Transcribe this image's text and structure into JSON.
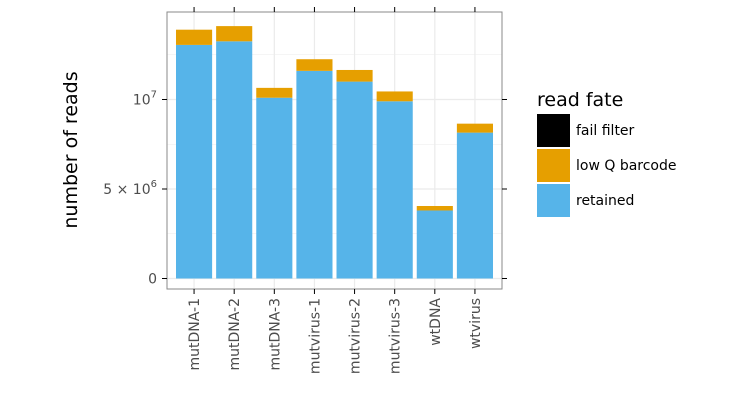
{
  "chart_data": {
    "type": "bar",
    "stacked": true,
    "title": "",
    "xlabel": "",
    "ylabel": "number of reads",
    "ylim": [
      0,
      14600000
    ],
    "yticks": [
      {
        "value": 0,
        "label": "0"
      },
      {
        "value": 5000000,
        "label": "5 × 10",
        "exp": "6"
      },
      {
        "value": 10000000,
        "label": "10",
        "exp": "7"
      }
    ],
    "categories": [
      "mutDNA-1",
      "mutDNA-2",
      "mutDNA-3",
      "mutvirus-1",
      "mutvirus-2",
      "mutvirus-3",
      "wtDNA",
      "wtvirus"
    ],
    "series": [
      {
        "name": "retained",
        "color": "#56B4E9",
        "values": [
          13050000,
          13250000,
          10100000,
          11600000,
          11000000,
          9900000,
          3800000,
          8150000
        ]
      },
      {
        "name": "low Q barcode",
        "color": "#E69F00",
        "values": [
          850000,
          850000,
          550000,
          650000,
          650000,
          550000,
          250000,
          500000
        ]
      },
      {
        "name": "fail filter",
        "color": "#000000",
        "values": [
          0,
          0,
          0,
          0,
          0,
          0,
          0,
          0
        ]
      }
    ],
    "legend": {
      "title": "read fate",
      "position": "right",
      "entries": [
        {
          "label": "fail filter",
          "color": "#000000"
        },
        {
          "label": "low Q barcode",
          "color": "#E69F00"
        },
        {
          "label": "retained",
          "color": "#56B4E9"
        }
      ]
    }
  }
}
